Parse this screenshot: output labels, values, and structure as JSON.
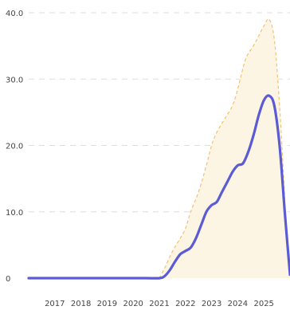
{
  "chart_data": {
    "type": "area",
    "title": "",
    "xlabel": "",
    "ylabel": "",
    "x_ticks": [
      "2017",
      "2018",
      "2019",
      "2020",
      "2021",
      "2022",
      "2023",
      "2024",
      "2025"
    ],
    "y_ticks": [
      "0",
      "10.0",
      "20.0",
      "30.0",
      "40.0"
    ],
    "xlim": [
      2016.0,
      2026.0
    ],
    "ylim": [
      0,
      40
    ],
    "grid": "horizontal-dashed",
    "legend": "none",
    "series": [
      {
        "kind": "line",
        "color": "#5b5bd6",
        "x": [
          2016.0,
          2016.5,
          2017.0,
          2017.5,
          2018.0,
          2018.5,
          2019.0,
          2019.5,
          2020.0,
          2020.5,
          2021.0,
          2021.2,
          2021.4,
          2021.6,
          2021.8,
          2022.0,
          2022.2,
          2022.4,
          2022.6,
          2022.8,
          2023.0,
          2023.2,
          2023.4,
          2023.6,
          2023.8,
          2024.0,
          2024.2,
          2024.4,
          2024.6,
          2024.8,
          2025.0,
          2025.2,
          2025.4,
          2025.6,
          2025.8,
          2026.0
        ],
        "y": [
          0,
          0,
          0,
          0,
          0,
          0,
          0,
          0,
          0,
          0,
          0,
          0.3,
          1.2,
          2.5,
          3.6,
          4.1,
          4.6,
          6.0,
          8.0,
          10.0,
          11.0,
          11.5,
          13.0,
          14.5,
          16.0,
          17.0,
          17.3,
          19.0,
          21.5,
          24.5,
          26.8,
          27.5,
          26.0,
          20.0,
          10.0,
          0.5
        ]
      },
      {
        "kind": "band",
        "fill": "#fdf5e4",
        "border": "#f2c26e",
        "x": [
          2016.0,
          2020.5,
          2021.0,
          2021.2,
          2021.5,
          2021.8,
          2022.0,
          2022.2,
          2022.5,
          2022.8,
          2023.0,
          2023.2,
          2023.5,
          2023.8,
          2024.0,
          2024.3,
          2024.6,
          2024.8,
          2025.0,
          2025.2,
          2025.4,
          2025.6,
          2025.8,
          2026.0
        ],
        "y": [
          0,
          0,
          0,
          1.5,
          4.0,
          6.0,
          7.5,
          10.0,
          13.0,
          17.0,
          20.0,
          22.0,
          24.0,
          26.0,
          28.5,
          33.0,
          35.0,
          36.5,
          38.0,
          39.0,
          36.0,
          26.0,
          12.0,
          0
        ]
      }
    ]
  }
}
